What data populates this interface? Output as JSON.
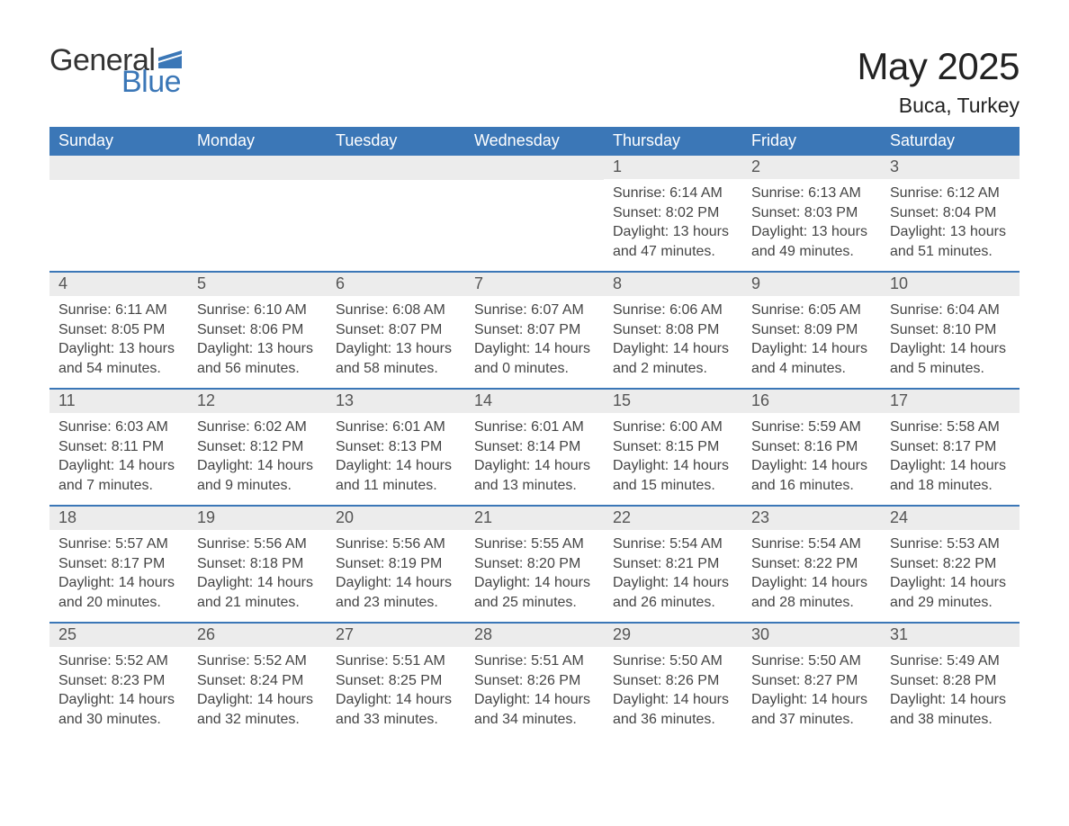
{
  "logo": {
    "part1": "General",
    "part2": "Blue"
  },
  "title": "May 2025",
  "location": "Buca, Turkey",
  "colors": {
    "header_bg": "#3b77b7",
    "header_text": "#ffffff",
    "daynum_bg": "#ececec",
    "daynum_text": "#555555",
    "body_text": "#444444",
    "accent": "#3b77b7",
    "page_bg": "#ffffff"
  },
  "weekdays": [
    "Sunday",
    "Monday",
    "Tuesday",
    "Wednesday",
    "Thursday",
    "Friday",
    "Saturday"
  ],
  "weeks": [
    [
      null,
      null,
      null,
      null,
      {
        "n": "1",
        "sunrise": "6:14 AM",
        "sunset": "8:02 PM",
        "daylight": "13 hours and 47 minutes."
      },
      {
        "n": "2",
        "sunrise": "6:13 AM",
        "sunset": "8:03 PM",
        "daylight": "13 hours and 49 minutes."
      },
      {
        "n": "3",
        "sunrise": "6:12 AM",
        "sunset": "8:04 PM",
        "daylight": "13 hours and 51 minutes."
      }
    ],
    [
      {
        "n": "4",
        "sunrise": "6:11 AM",
        "sunset": "8:05 PM",
        "daylight": "13 hours and 54 minutes."
      },
      {
        "n": "5",
        "sunrise": "6:10 AM",
        "sunset": "8:06 PM",
        "daylight": "13 hours and 56 minutes."
      },
      {
        "n": "6",
        "sunrise": "6:08 AM",
        "sunset": "8:07 PM",
        "daylight": "13 hours and 58 minutes."
      },
      {
        "n": "7",
        "sunrise": "6:07 AM",
        "sunset": "8:07 PM",
        "daylight": "14 hours and 0 minutes."
      },
      {
        "n": "8",
        "sunrise": "6:06 AM",
        "sunset": "8:08 PM",
        "daylight": "14 hours and 2 minutes."
      },
      {
        "n": "9",
        "sunrise": "6:05 AM",
        "sunset": "8:09 PM",
        "daylight": "14 hours and 4 minutes."
      },
      {
        "n": "10",
        "sunrise": "6:04 AM",
        "sunset": "8:10 PM",
        "daylight": "14 hours and 5 minutes."
      }
    ],
    [
      {
        "n": "11",
        "sunrise": "6:03 AM",
        "sunset": "8:11 PM",
        "daylight": "14 hours and 7 minutes."
      },
      {
        "n": "12",
        "sunrise": "6:02 AM",
        "sunset": "8:12 PM",
        "daylight": "14 hours and 9 minutes."
      },
      {
        "n": "13",
        "sunrise": "6:01 AM",
        "sunset": "8:13 PM",
        "daylight": "14 hours and 11 minutes."
      },
      {
        "n": "14",
        "sunrise": "6:01 AM",
        "sunset": "8:14 PM",
        "daylight": "14 hours and 13 minutes."
      },
      {
        "n": "15",
        "sunrise": "6:00 AM",
        "sunset": "8:15 PM",
        "daylight": "14 hours and 15 minutes."
      },
      {
        "n": "16",
        "sunrise": "5:59 AM",
        "sunset": "8:16 PM",
        "daylight": "14 hours and 16 minutes."
      },
      {
        "n": "17",
        "sunrise": "5:58 AM",
        "sunset": "8:17 PM",
        "daylight": "14 hours and 18 minutes."
      }
    ],
    [
      {
        "n": "18",
        "sunrise": "5:57 AM",
        "sunset": "8:17 PM",
        "daylight": "14 hours and 20 minutes."
      },
      {
        "n": "19",
        "sunrise": "5:56 AM",
        "sunset": "8:18 PM",
        "daylight": "14 hours and 21 minutes."
      },
      {
        "n": "20",
        "sunrise": "5:56 AM",
        "sunset": "8:19 PM",
        "daylight": "14 hours and 23 minutes."
      },
      {
        "n": "21",
        "sunrise": "5:55 AM",
        "sunset": "8:20 PM",
        "daylight": "14 hours and 25 minutes."
      },
      {
        "n": "22",
        "sunrise": "5:54 AM",
        "sunset": "8:21 PM",
        "daylight": "14 hours and 26 minutes."
      },
      {
        "n": "23",
        "sunrise": "5:54 AM",
        "sunset": "8:22 PM",
        "daylight": "14 hours and 28 minutes."
      },
      {
        "n": "24",
        "sunrise": "5:53 AM",
        "sunset": "8:22 PM",
        "daylight": "14 hours and 29 minutes."
      }
    ],
    [
      {
        "n": "25",
        "sunrise": "5:52 AM",
        "sunset": "8:23 PM",
        "daylight": "14 hours and 30 minutes."
      },
      {
        "n": "26",
        "sunrise": "5:52 AM",
        "sunset": "8:24 PM",
        "daylight": "14 hours and 32 minutes."
      },
      {
        "n": "27",
        "sunrise": "5:51 AM",
        "sunset": "8:25 PM",
        "daylight": "14 hours and 33 minutes."
      },
      {
        "n": "28",
        "sunrise": "5:51 AM",
        "sunset": "8:26 PM",
        "daylight": "14 hours and 34 minutes."
      },
      {
        "n": "29",
        "sunrise": "5:50 AM",
        "sunset": "8:26 PM",
        "daylight": "14 hours and 36 minutes."
      },
      {
        "n": "30",
        "sunrise": "5:50 AM",
        "sunset": "8:27 PM",
        "daylight": "14 hours and 37 minutes."
      },
      {
        "n": "31",
        "sunrise": "5:49 AM",
        "sunset": "8:28 PM",
        "daylight": "14 hours and 38 minutes."
      }
    ]
  ],
  "labels": {
    "sunrise": "Sunrise: ",
    "sunset": "Sunset: ",
    "daylight": "Daylight: "
  }
}
